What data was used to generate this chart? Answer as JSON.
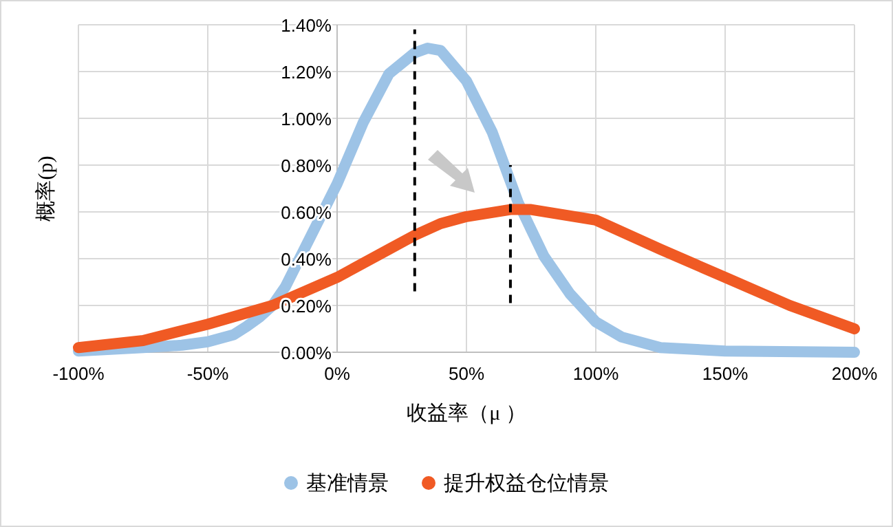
{
  "chart_data": {
    "type": "line",
    "xlabel": "收益率（μ ）",
    "ylabel": "概率(p)",
    "series": [
      {
        "name": "基准情景",
        "color": "#9dc3e6",
        "x": [
          -100,
          -75,
          -60,
          -50,
          -40,
          -35,
          -30,
          -25,
          -20,
          -10,
          0,
          10,
          20,
          30,
          35,
          40,
          50,
          60,
          70,
          80,
          90,
          100,
          110,
          125,
          150,
          200
        ],
        "values": [
          0.005,
          0.02,
          0.03,
          0.045,
          0.075,
          0.11,
          0.15,
          0.2,
          0.28,
          0.5,
          0.72,
          0.98,
          1.19,
          1.28,
          1.3,
          1.29,
          1.16,
          0.94,
          0.64,
          0.41,
          0.25,
          0.13,
          0.065,
          0.02,
          0.005,
          0.0
        ]
      },
      {
        "name": "提升权益仓位情景",
        "color": "#f05a24",
        "x": [
          -100,
          -75,
          -50,
          -25,
          0,
          20,
          30,
          40,
          50,
          67,
          75,
          100,
          125,
          150,
          175,
          200
        ],
        "values": [
          0.02,
          0.05,
          0.12,
          0.2,
          0.32,
          0.44,
          0.5,
          0.55,
          0.58,
          0.61,
          0.61,
          0.565,
          0.44,
          0.32,
          0.2,
          0.1
        ]
      },
      {
        "color": "#000000",
        "line_style": "dashed",
        "x": [
          30,
          30
        ],
        "values": [
          0.26,
          1.38
        ]
      },
      {
        "color": "#000000",
        "line_style": "dashed",
        "x": [
          67,
          67
        ],
        "values": [
          0.21,
          0.8
        ]
      }
    ],
    "xlim": [
      -100,
      200
    ],
    "xticks": [
      {
        "value": -100,
        "label": "-100%"
      },
      {
        "value": -50,
        "label": "-50%"
      },
      {
        "value": 0,
        "label": "0%"
      },
      {
        "value": 50,
        "label": "50%"
      },
      {
        "value": 100,
        "label": "100%"
      },
      {
        "value": 150,
        "label": "150%"
      },
      {
        "value": 200,
        "label": "200%"
      }
    ],
    "ylim": [
      0,
      1.4
    ],
    "yticks": [
      {
        "value": 0,
        "label": "0.00%"
      },
      {
        "value": 0.2,
        "label": "0.20%"
      },
      {
        "value": 0.4,
        "label": "0.40%"
      },
      {
        "value": 0.6,
        "label": "0.60%"
      },
      {
        "value": 0.8,
        "label": "0.80%"
      },
      {
        "value": 1.0,
        "label": "1.00%"
      },
      {
        "value": 1.2,
        "label": "1.20%"
      },
      {
        "value": 1.4,
        "label": "1.40%"
      }
    ],
    "grid": true,
    "legend": "bottom"
  }
}
